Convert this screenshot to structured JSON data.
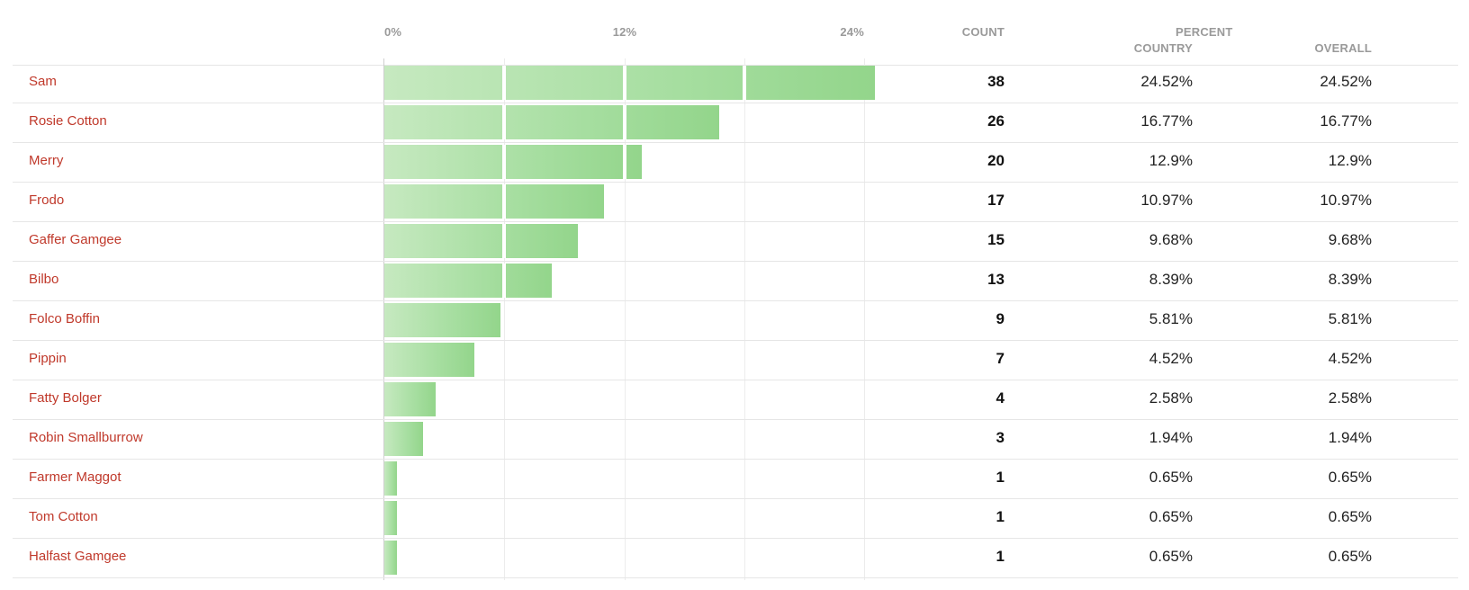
{
  "header": {
    "ticks": [
      "0%",
      "12%",
      "24%"
    ],
    "count_label": "COUNT",
    "percent_label": "PERCENT",
    "country_label": "COUNTRY",
    "overall_label": "OVERALL"
  },
  "colors": {
    "bar_start": "#c6e9c0",
    "bar_end": "#93d58b",
    "name_link": "#c0392b"
  },
  "chart_data": {
    "type": "bar",
    "orientation": "horizontal",
    "xlim": [
      0,
      24
    ],
    "xticks": [
      0,
      12,
      24
    ],
    "categories": [
      "Sam",
      "Rosie Cotton",
      "Merry",
      "Frodo",
      "Gaffer Gamgee",
      "Bilbo",
      "Folco Boffin",
      "Pippin",
      "Fatty Bolger",
      "Robin Smallburrow",
      "Farmer Maggot",
      "Tom Cotton",
      "Halfast Gamgee"
    ],
    "values": [
      24.52,
      16.77,
      12.9,
      10.97,
      9.68,
      8.39,
      5.81,
      4.52,
      2.58,
      1.94,
      0.65,
      0.65,
      0.65
    ]
  },
  "rows": [
    {
      "name": "Sam",
      "count": "38",
      "pct_country": "24.52%",
      "pct_overall": "24.52%"
    },
    {
      "name": "Rosie Cotton",
      "count": "26",
      "pct_country": "16.77%",
      "pct_overall": "16.77%"
    },
    {
      "name": "Merry",
      "count": "20",
      "pct_country": "12.9%",
      "pct_overall": "12.9%"
    },
    {
      "name": "Frodo",
      "count": "17",
      "pct_country": "10.97%",
      "pct_overall": "10.97%"
    },
    {
      "name": "Gaffer Gamgee",
      "count": "15",
      "pct_country": "9.68%",
      "pct_overall": "9.68%"
    },
    {
      "name": "Bilbo",
      "count": "13",
      "pct_country": "8.39%",
      "pct_overall": "8.39%"
    },
    {
      "name": "Folco Boffin",
      "count": "9",
      "pct_country": "5.81%",
      "pct_overall": "5.81%"
    },
    {
      "name": "Pippin",
      "count": "7",
      "pct_country": "4.52%",
      "pct_overall": "4.52%"
    },
    {
      "name": "Fatty Bolger",
      "count": "4",
      "pct_country": "2.58%",
      "pct_overall": "2.58%"
    },
    {
      "name": "Robin Smallburrow",
      "count": "3",
      "pct_country": "1.94%",
      "pct_overall": "1.94%"
    },
    {
      "name": "Farmer Maggot",
      "count": "1",
      "pct_country": "0.65%",
      "pct_overall": "0.65%"
    },
    {
      "name": "Tom Cotton",
      "count": "1",
      "pct_country": "0.65%",
      "pct_overall": "0.65%"
    },
    {
      "name": "Halfast Gamgee",
      "count": "1",
      "pct_country": "0.65%",
      "pct_overall": "0.65%"
    }
  ]
}
